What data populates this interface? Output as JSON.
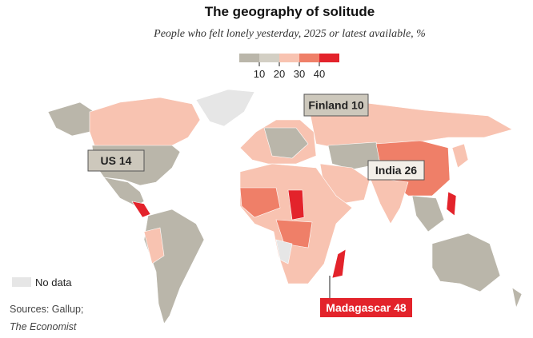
{
  "header": {
    "title": "The geography of solitude",
    "subtitle": "People who felt lonely yesterday, 2025 or latest available, %"
  },
  "legend": {
    "bins": [
      "#bab6aa",
      "#d3cfc4",
      "#f8c3b1",
      "#ef7f68",
      "#e3232b"
    ],
    "ticks": [
      10,
      20,
      30,
      40
    ],
    "no_data": "No data"
  },
  "annotations": [
    {
      "label": "Finland 10",
      "style": "gray"
    },
    {
      "label": "US 14",
      "style": "gray"
    },
    {
      "label": "India 26",
      "style": "light"
    },
    {
      "label": "Madagascar 48",
      "style": "red"
    }
  ],
  "footer": {
    "sources": "Sources: Gallup;",
    "publisher": "The Economist"
  }
}
